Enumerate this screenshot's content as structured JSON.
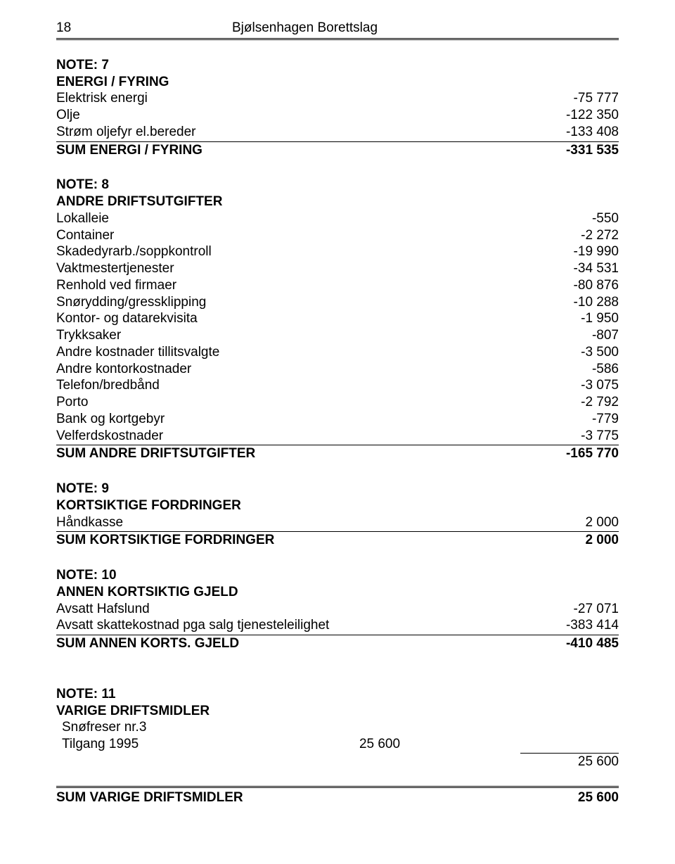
{
  "header": {
    "page_number": "18",
    "title": "Bjølsenhagen Borettslag"
  },
  "note7": {
    "heading1": "NOTE: 7",
    "heading2": "ENERGI / FYRING",
    "rows": [
      {
        "label": "Elektrisk energi",
        "value": "-75 777"
      },
      {
        "label": "Olje",
        "value": "-122 350"
      },
      {
        "label": "Strøm oljefyr el.bereder",
        "value": "-133 408"
      }
    ],
    "sum_label": "SUM ENERGI / FYRING",
    "sum_value": "-331 535"
  },
  "note8": {
    "heading1": "NOTE: 8",
    "heading2": "ANDRE DRIFTSUTGIFTER",
    "rows": [
      {
        "label": "Lokalleie",
        "value": "-550"
      },
      {
        "label": "Container",
        "value": "-2 272"
      },
      {
        "label": "Skadedyrarb./soppkontroll",
        "value": "-19 990"
      },
      {
        "label": "Vaktmestertjenester",
        "value": "-34 531"
      },
      {
        "label": "Renhold ved firmaer",
        "value": "-80 876"
      },
      {
        "label": "Snørydding/gressklipping",
        "value": "-10 288"
      },
      {
        "label": "Kontor- og datarekvisita",
        "value": "-1 950"
      },
      {
        "label": "Trykksaker",
        "value": "-807"
      },
      {
        "label": "Andre kostnader tillitsvalgte",
        "value": "-3 500"
      },
      {
        "label": "Andre kontorkostnader",
        "value": "-586"
      },
      {
        "label": "Telefon/bredbånd",
        "value": "-3 075"
      },
      {
        "label": "Porto",
        "value": "-2 792"
      },
      {
        "label": "Bank og kortgebyr",
        "value": "-779"
      },
      {
        "label": "Velferdskostnader",
        "value": "-3 775"
      }
    ],
    "sum_label": "SUM ANDRE DRIFTSUTGIFTER",
    "sum_value": "-165 770"
  },
  "note9": {
    "heading1": "NOTE: 9",
    "heading2": "KORTSIKTIGE FORDRINGER",
    "rows": [
      {
        "label": "Håndkasse",
        "value": "2 000"
      }
    ],
    "sum_label": "SUM KORTSIKTIGE FORDRINGER",
    "sum_value": "2 000"
  },
  "note10": {
    "heading1": "NOTE: 10",
    "heading2": "ANNEN KORTSIKTIG GJELD",
    "rows": [
      {
        "label": "Avsatt Hafslund",
        "value": "-27 071"
      },
      {
        "label": "Avsatt skattekostnad pga salg tjenesteleilighet",
        "value": "-383 414"
      }
    ],
    "sum_label": "SUM ANNEN KORTS. GJELD",
    "sum_value": "-410 485"
  },
  "note11": {
    "heading1": "NOTE: 11",
    "heading2": "VARIGE DRIFTSMIDLER",
    "sub_label": "Snøfreser nr.3",
    "tilgang_label": "Tilgang 1995",
    "tilgang_mid": "25 600",
    "subtotal_value": "25 600",
    "sum_label": "SUM VARIGE DRIFTSMIDLER",
    "sum_value": "25 600"
  }
}
